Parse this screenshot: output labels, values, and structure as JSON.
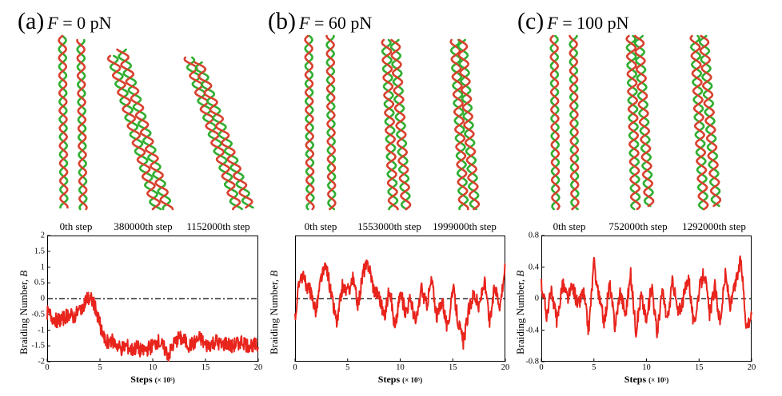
{
  "panels": [
    {
      "id": "a",
      "label": "(a)",
      "force_symbol": "F",
      "force_value": "= 0 pN",
      "snapshots": [
        "0th step",
        "380000th step",
        "1152000th step"
      ]
    },
    {
      "id": "b",
      "label": "(b)",
      "force_symbol": "F",
      "force_value": "= 60 pN",
      "snapshots": [
        "0th step",
        "1553000th step",
        "1999000th step"
      ]
    },
    {
      "id": "c",
      "label": "(c)",
      "force_symbol": "F",
      "force_value": "= 100 pN",
      "snapshots": [
        "0th step",
        "752000th step",
        "1292000th step"
      ]
    }
  ],
  "colors": {
    "strand_green": "#2fae2f",
    "strand_red": "#d8402e",
    "trace": "#e8241c"
  },
  "chart_data": [
    {
      "type": "line",
      "xlabel": "Steps",
      "xlabel_unit": "(× 10⁵)",
      "ylabel": "Braiding Number, ",
      "ylabel_symbol": "B",
      "xlim": [
        0,
        20
      ],
      "ylim": [
        -2,
        2
      ],
      "xticks": [
        "0",
        "5",
        "10",
        "15",
        "20"
      ],
      "yticks": [
        "2",
        "1.5",
        "1",
        "0.5",
        "0",
        "-0.5",
        "-1",
        "-1.5",
        "-2"
      ],
      "reference_line": {
        "y": 0,
        "style": "dash-dot"
      },
      "series": [
        {
          "name": "F = 0 pN",
          "x": [
            0,
            0.5,
            1,
            1.5,
            2,
            2.5,
            3,
            3.5,
            3.8,
            4.2,
            4.6,
            5,
            5.5,
            6,
            6.5,
            7,
            7.5,
            8,
            8.5,
            9,
            9.5,
            10,
            10.5,
            11,
            11.5,
            12,
            12.5,
            13,
            13.5,
            14,
            14.5,
            15,
            15.5,
            16,
            16.5,
            17,
            17.5,
            18,
            18.5,
            19,
            19.5,
            20
          ],
          "values": [
            -0.45,
            -0.6,
            -0.7,
            -0.65,
            -0.5,
            -0.6,
            -0.4,
            -0.15,
            0.0,
            -0.05,
            -0.3,
            -0.8,
            -1.4,
            -1.3,
            -1.45,
            -1.6,
            -1.5,
            -1.65,
            -1.55,
            -1.7,
            -1.6,
            -1.5,
            -1.35,
            -1.55,
            -1.8,
            -1.45,
            -1.25,
            -1.35,
            -1.5,
            -1.4,
            -1.25,
            -1.5,
            -1.45,
            -1.35,
            -1.5,
            -1.4,
            -1.55,
            -1.4,
            -1.35,
            -1.5,
            -1.45,
            -1.55
          ]
        }
      ]
    },
    {
      "type": "line",
      "xlabel": "Steps",
      "xlabel_unit": "(× 10⁵)",
      "ylabel": "Braiding Number, ",
      "ylabel_symbol": "B",
      "xlim": [
        0,
        20
      ],
      "ylim": [
        -1,
        1
      ],
      "xticks": [
        "0",
        "5",
        "10",
        "15",
        "20"
      ],
      "yticks": [],
      "reference_line": {
        "y": 0,
        "style": "dash"
      },
      "series": [
        {
          "name": "F = 60 pN",
          "x": [
            0,
            0.5,
            1,
            1.5,
            2,
            2.5,
            3,
            3.5,
            4,
            4.5,
            5,
            5.5,
            6,
            6.5,
            7,
            7.5,
            8,
            8.5,
            9,
            9.5,
            10,
            10.5,
            11,
            11.5,
            12,
            12.5,
            13,
            13.5,
            14,
            14.5,
            15,
            15.5,
            16,
            16.5,
            17,
            17.5,
            18,
            18.5,
            19,
            19.5,
            20
          ],
          "values": [
            -0.3,
            0.4,
            0.25,
            0.1,
            -0.2,
            0.35,
            0.5,
            0.0,
            -0.4,
            0.2,
            0.1,
            0.3,
            -0.1,
            0.45,
            0.55,
            0.15,
            0.05,
            -0.3,
            0.2,
            -0.5,
            0.1,
            -0.2,
            0.0,
            -0.4,
            0.15,
            -0.1,
            0.3,
            -0.3,
            0.0,
            -0.5,
            0.2,
            -0.35,
            -0.7,
            -0.2,
            0.1,
            -0.15,
            0.3,
            -0.4,
            0.2,
            -0.1,
            0.55
          ]
        }
      ]
    },
    {
      "type": "line",
      "xlabel": "Steps",
      "xlabel_unit": "(× 10⁵)",
      "ylabel": "Braiding Number, ",
      "ylabel_symbol": "B",
      "xlim": [
        0,
        20
      ],
      "ylim": [
        -0.8,
        0.8
      ],
      "xticks": [
        "0",
        "5",
        "10",
        "15",
        "20"
      ],
      "yticks": [
        "0.8",
        "0.4",
        "0",
        "-0.4",
        "-0.8"
      ],
      "reference_line": {
        "y": 0,
        "style": "dash"
      },
      "series": [
        {
          "name": "F = 100 pN",
          "x": [
            0,
            0.5,
            1,
            1.5,
            2,
            2.5,
            3,
            3.5,
            4,
            4.5,
            5,
            5.5,
            6,
            6.5,
            7,
            7.5,
            8,
            8.5,
            9,
            9.5,
            10,
            10.5,
            11,
            11.5,
            12,
            12.5,
            13,
            13.5,
            14,
            14.5,
            15,
            15.5,
            16,
            16.5,
            17,
            17.5,
            18,
            18.5,
            19,
            19.5,
            20
          ],
          "values": [
            0.2,
            -0.2,
            0.1,
            -0.3,
            0.2,
            0.0,
            0.15,
            -0.1,
            0.1,
            -0.4,
            0.45,
            0.0,
            -0.3,
            0.2,
            -0.35,
            0.1,
            -0.2,
            0.3,
            -0.4,
            0.05,
            -0.3,
            0.2,
            -0.45,
            0.1,
            -0.3,
            0.25,
            -0.2,
            0.0,
            0.3,
            -0.35,
            0.1,
            0.35,
            -0.2,
            0.15,
            -0.3,
            0.3,
            -0.1,
            0.2,
            0.5,
            -0.35,
            -0.2
          ]
        }
      ]
    }
  ]
}
